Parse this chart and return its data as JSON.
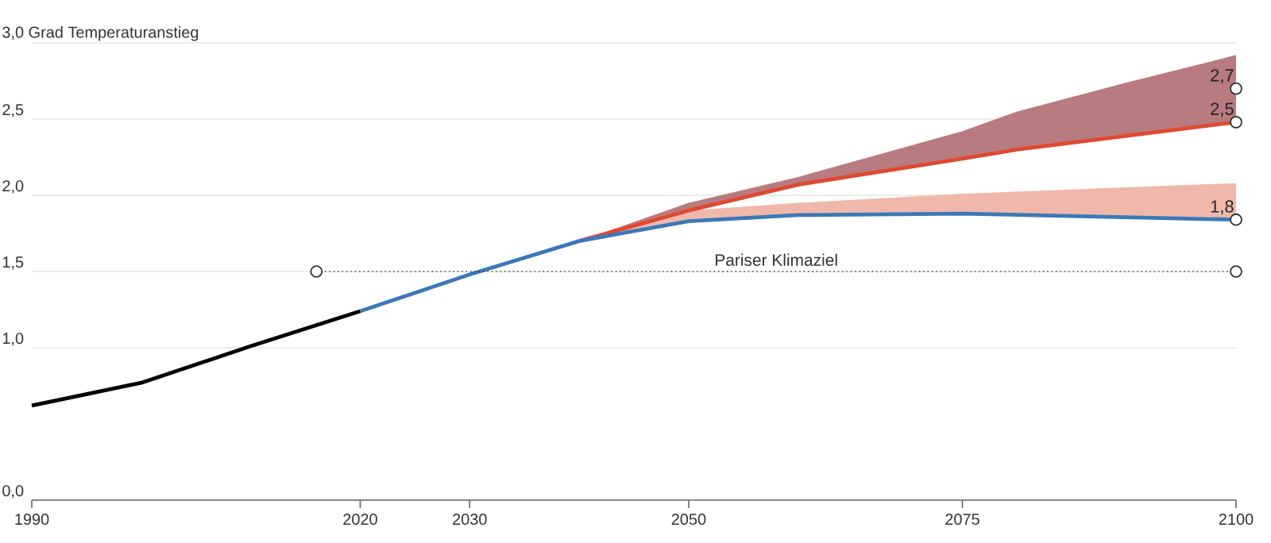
{
  "chart_data": {
    "type": "line",
    "xlim": [
      1990,
      2100
    ],
    "ylim": [
      0,
      3.0
    ],
    "xticks": [
      1990,
      2020,
      2030,
      2050,
      2075,
      2100
    ],
    "yticks": [
      {
        "value": 0,
        "label": "0,0"
      },
      {
        "value": 1,
        "label": "1,0"
      },
      {
        "value": 1.5,
        "label": "1,5"
      },
      {
        "value": 2,
        "label": "2,0"
      },
      {
        "value": 2.5,
        "label": "2,5"
      },
      {
        "value": 3,
        "label": "3,0 Grad Temperaturanstieg"
      }
    ],
    "grid": "y",
    "series": [
      {
        "color": "#000000",
        "x": [
          1990,
          2000,
          2010,
          2020
        ],
        "values": [
          0.62,
          0.77,
          1.01,
          1.24
        ]
      },
      {
        "color": "#e0492f",
        "x": [
          2040,
          2050,
          2060,
          2075,
          2080,
          2090,
          2100
        ],
        "values": [
          1.7,
          1.9,
          2.07,
          2.24,
          2.3,
          2.39,
          2.48
        ],
        "lower": [
          1.7,
          1.9,
          2.07,
          2.24,
          2.3,
          2.39,
          2.48
        ],
        "upper": [
          1.7,
          1.95,
          2.12,
          2.42,
          2.55,
          2.74,
          2.92
        ]
      },
      {
        "color": "#3b78b8",
        "x": [
          2020,
          2030,
          2040,
          2050,
          2060,
          2075,
          2100
        ],
        "values": [
          1.24,
          1.48,
          1.7,
          1.83,
          1.87,
          1.88,
          1.84
        ],
        "lower": [
          null,
          null,
          1.7,
          1.83,
          1.87,
          1.88,
          1.84
        ],
        "upper": [
          null,
          null,
          1.7,
          1.9,
          1.95,
          2.01,
          2.08
        ]
      },
      {
        "name": "Pariser Klimaziel",
        "color": "#333333",
        "line_style": "dotted",
        "marker": "circle",
        "x": [
          2016,
          2100
        ],
        "values": [
          1.5,
          1.5
        ]
      },
      {
        "type": "scatter",
        "color": "#333333",
        "marker": "circle",
        "x": [
          2100,
          2100,
          2100
        ],
        "values": [
          2.7,
          2.48,
          1.84
        ],
        "value_labels": [
          "2,7",
          "2,5",
          "1,8"
        ]
      }
    ]
  }
}
